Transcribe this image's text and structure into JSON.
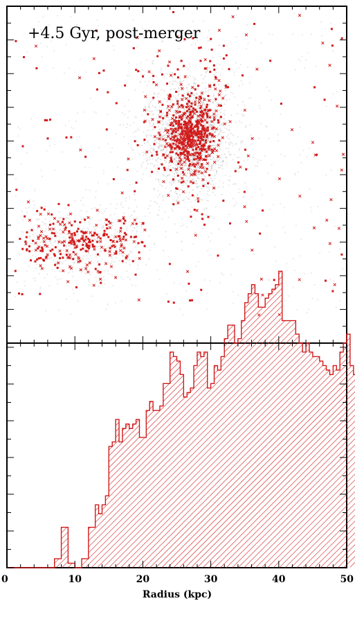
{
  "chart_data": [
    {
      "type": "scatter",
      "title": "+4.5 Gyr, post-merger",
      "xlabel": "",
      "ylabel": "",
      "colors": {
        "background_particles": "#bdbdbd",
        "marker_particles": "#d11a1a"
      },
      "structure": {
        "main_clump": {
          "center": [
            27,
            0.61
          ],
          "spread": [
            1.6,
            0.05
          ]
        },
        "tidal_tail": {
          "from": [
            3,
            0.3
          ],
          "to": [
            19,
            0.3
          ],
          "spread_y": 0.04
        },
        "halo": {
          "xrange": [
            1,
            49.5
          ],
          "yrange": [
            0.08,
            0.98
          ]
        }
      },
      "grid": false,
      "legend": "none"
    },
    {
      "type": "bar",
      "style": "step-histogram, diagonal hatch",
      "xlabel": "Radius (kpc)",
      "ylabel": "",
      "xlim": [
        0,
        50
      ],
      "ylim": [
        0,
        50
      ],
      "bin_width": 0.5,
      "xticks": [
        "0",
        "10",
        "20",
        "30",
        "40",
        "50"
      ],
      "color": "#d11a1a",
      "values": [
        0,
        0,
        0,
        0,
        0,
        0,
        0,
        0,
        0,
        0,
        0,
        0,
        0,
        0,
        2,
        2,
        9,
        9,
        1,
        1,
        0,
        0,
        2,
        2,
        9,
        9,
        14,
        12,
        14,
        16,
        27,
        28,
        33,
        28,
        31,
        32,
        31,
        32,
        33,
        29,
        29,
        35,
        37,
        35,
        35,
        36,
        41,
        41,
        48,
        47,
        46,
        43,
        38,
        39,
        40,
        45,
        48,
        47,
        48,
        40,
        41,
        45,
        44,
        47,
        51,
        54,
        54,
        50,
        51,
        55,
        59,
        61,
        63,
        61,
        58,
        58,
        60,
        61,
        62,
        63,
        66,
        55,
        55,
        55,
        55,
        52,
        50,
        48,
        50,
        48,
        47,
        47,
        46,
        45,
        44,
        43,
        45,
        44,
        48,
        50,
        52,
        45,
        43,
        46,
        47,
        44,
        41,
        40,
        38,
        36,
        30,
        23,
        25,
        16,
        27,
        21,
        23,
        30,
        22,
        19,
        21,
        19,
        20,
        21,
        24,
        20,
        18,
        17,
        21,
        21,
        22,
        14,
        15,
        19,
        20,
        26,
        28,
        21,
        17,
        17,
        14,
        17,
        13,
        20,
        22,
        21,
        16,
        18,
        18,
        19,
        23,
        16,
        14,
        12,
        14,
        12,
        12,
        15,
        19,
        18,
        16,
        13,
        11,
        8,
        13,
        13,
        8,
        8,
        13,
        13,
        16,
        11,
        10,
        10,
        9,
        9,
        10,
        8,
        9,
        10,
        14,
        14,
        9,
        9,
        9,
        11,
        10,
        13,
        11,
        10,
        5,
        6,
        9,
        10,
        11,
        12,
        8,
        9,
        10,
        9,
        9,
        8,
        10
      ]
    }
  ]
}
